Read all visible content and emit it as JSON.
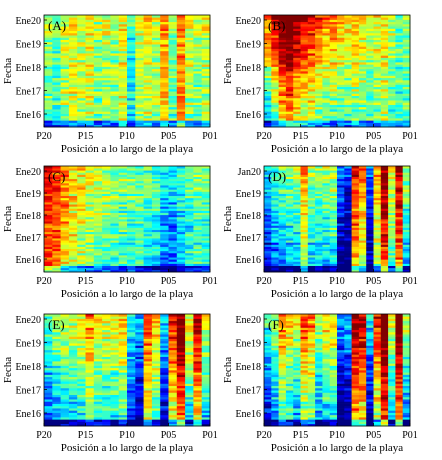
{
  "chart_data": [
    {
      "type": "heatmap",
      "panel_label": "(A)",
      "ylabel": "Fecha",
      "xlabel": "Posición a lo largo de la playa",
      "y_ticks": [
        "Ene20",
        "Ene19",
        "Ene18",
        "Ene17",
        "Ene16"
      ],
      "x_ticks": [
        "P20",
        "P15",
        "P10",
        "P05",
        "P01"
      ],
      "n_positions": 20,
      "n_surveys": 50,
      "profile": [
        0.5,
        0.45,
        0.55,
        0.6,
        0.55,
        0.6,
        0.5,
        0.55,
        0.5,
        0.6,
        0.4,
        0.55,
        0.6,
        0.55,
        0.7,
        0.5,
        0.75,
        0.55,
        0.5,
        0.55
      ],
      "time_trend": 0.05
    },
    {
      "type": "heatmap",
      "panel_label": "(B)",
      "ylabel": "Fecha",
      "xlabel": "Posición a lo largo de la playa",
      "y_ticks": [
        "Ene20",
        "Ene19",
        "Ene18",
        "Ene17",
        "Ene16"
      ],
      "x_ticks": [
        "P20",
        "P15",
        "P10",
        "P05",
        "P01"
      ],
      "n_positions": 20,
      "n_surveys": 50,
      "profile": [
        0.55,
        0.7,
        0.85,
        0.9,
        0.8,
        0.75,
        0.7,
        0.65,
        0.6,
        0.6,
        0.55,
        0.55,
        0.6,
        0.55,
        0.5,
        0.55,
        0.6,
        0.5,
        0.45,
        0.5
      ],
      "time_trend": 0.35
    },
    {
      "type": "heatmap",
      "panel_label": "(C)",
      "ylabel": "Fecha",
      "xlabel": "Posición a lo largo de la playa",
      "y_ticks": [
        "Ene20",
        "Ene19",
        "Ene18",
        "Ene17",
        "Ene16"
      ],
      "x_ticks": [
        "P20",
        "P15",
        "P10",
        "P05",
        "P01"
      ],
      "n_positions": 20,
      "n_surveys": 50,
      "profile": [
        0.85,
        0.8,
        0.7,
        0.62,
        0.58,
        0.55,
        0.52,
        0.5,
        0.48,
        0.46,
        0.45,
        0.44,
        0.42,
        0.38,
        0.3,
        0.28,
        0.35,
        0.4,
        0.45,
        0.42
      ],
      "time_trend": 0.1
    },
    {
      "type": "heatmap",
      "panel_label": "(D)",
      "ylabel": "Fecha",
      "xlabel": "Posición a lo largo de la playa",
      "y_ticks": [
        "Jan20",
        "Ene19",
        "Ene18",
        "Ene17",
        "Ene16"
      ],
      "x_ticks": [
        "P20",
        "P15",
        "P10",
        "P05",
        "P01"
      ],
      "n_positions": 20,
      "n_surveys": 50,
      "profile": [
        0.2,
        0.32,
        0.38,
        0.4,
        0.42,
        0.62,
        0.42,
        0.4,
        0.42,
        0.45,
        0.1,
        0.05,
        0.78,
        0.65,
        0.1,
        0.62,
        0.9,
        0.5,
        0.85,
        0.42
      ],
      "time_trend": 0.25
    },
    {
      "type": "heatmap",
      "panel_label": "(E)",
      "ylabel": "Fecha",
      "xlabel": "Posición a lo largo de la playa",
      "y_ticks": [
        "Ene20",
        "Ene19",
        "Ene18",
        "Ene17",
        "Ene16"
      ],
      "x_ticks": [
        "P20",
        "P15",
        "P10",
        "P05",
        "P01"
      ],
      "n_positions": 20,
      "n_surveys": 50,
      "profile": [
        0.35,
        0.4,
        0.45,
        0.45,
        0.5,
        0.6,
        0.5,
        0.48,
        0.5,
        0.55,
        0.25,
        0.15,
        0.7,
        0.55,
        0.2,
        0.72,
        0.9,
        0.5,
        0.8,
        0.45
      ],
      "time_trend": 0.3
    },
    {
      "type": "heatmap",
      "panel_label": "(F)",
      "ylabel": "Fecha",
      "xlabel": "Posición a lo largo de la playa",
      "y_ticks": [
        "Ene20",
        "Ene19",
        "Ene18",
        "Ene17",
        "Ene16"
      ],
      "x_ticks": [
        "P20",
        "P15",
        "P10",
        "P05",
        "P01"
      ],
      "n_positions": 20,
      "n_surveys": 50,
      "profile": [
        0.25,
        0.4,
        0.6,
        0.5,
        0.45,
        0.65,
        0.6,
        0.4,
        0.5,
        0.5,
        0.1,
        0.15,
        0.85,
        0.8,
        0.2,
        0.7,
        0.95,
        0.45,
        0.9,
        0.4
      ],
      "time_trend": 0.35
    }
  ]
}
